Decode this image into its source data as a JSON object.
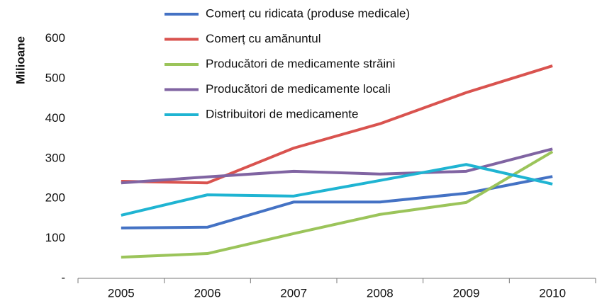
{
  "chart_data": {
    "type": "line",
    "y_label": "Milioane",
    "categories": [
      "2005",
      "2006",
      "2007",
      "2008",
      "2009",
      "2010"
    ],
    "series": [
      {
        "name": "Comerț cu ridicata (produse medicale)",
        "color": "#4472c4",
        "values": [
          126,
          128,
          191,
          191,
          213,
          255
        ]
      },
      {
        "name": "Comerț cu amănuntul",
        "color": "#d9534f",
        "values": [
          243,
          239,
          326,
          387,
          465,
          532
        ]
      },
      {
        "name": "Producători de medicamente străini",
        "color": "#9bc45a",
        "values": [
          53,
          62,
          112,
          160,
          190,
          317
        ]
      },
      {
        "name": "Producători de medicamente locali",
        "color": "#8064a2",
        "values": [
          239,
          254,
          268,
          261,
          268,
          324
        ]
      },
      {
        "name": "Distribuitori de medicamente",
        "color": "#1fb4d2",
        "values": [
          158,
          209,
          206,
          245,
          285,
          236
        ]
      }
    ],
    "ylim": [
      0,
      600
    ],
    "yticks": [
      {
        "value": 0,
        "label": "-"
      },
      100,
      200,
      300,
      400,
      500,
      600
    ],
    "grid": false,
    "legend": "top"
  }
}
